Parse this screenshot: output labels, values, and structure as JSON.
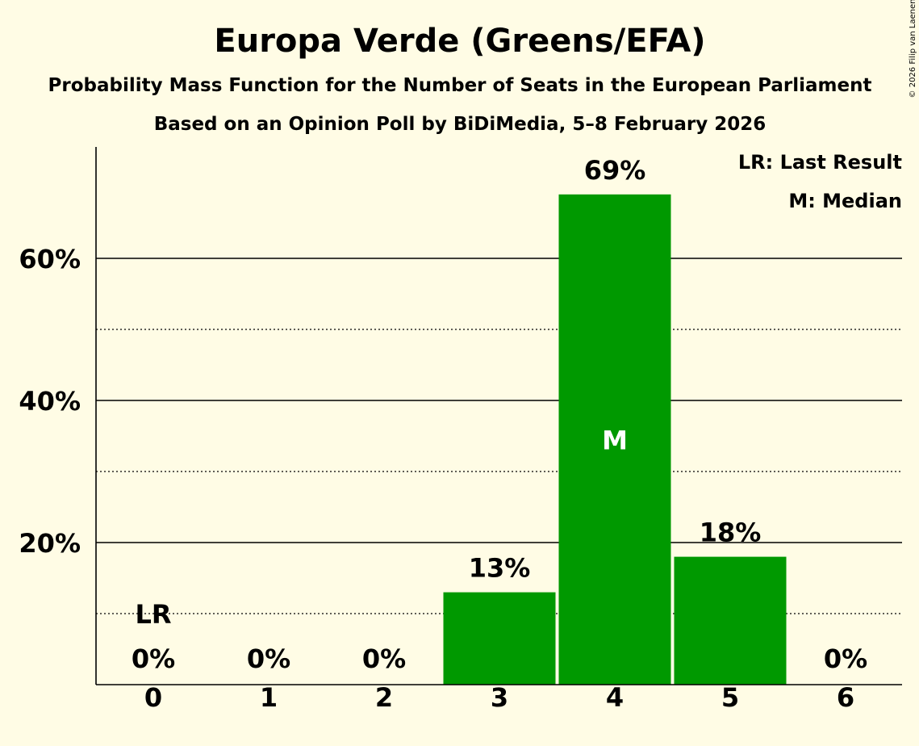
{
  "chart_data": {
    "type": "bar",
    "title": "Europa Verde (Greens/EFA)",
    "subtitle": "Probability Mass Function for the Number of Seats in the European Parliament",
    "subtitle2": "Based on an Opinion Poll by BiDiMedia, 5–8 February 2026",
    "copyright": "© 2026 Filip van Laenen",
    "categories": [
      "0",
      "1",
      "2",
      "3",
      "4",
      "5",
      "6"
    ],
    "values": [
      0,
      0,
      0,
      13,
      69,
      18,
      0
    ],
    "value_labels": [
      "0%",
      "0%",
      "0%",
      "13%",
      "69%",
      "18%",
      "0%"
    ],
    "y_ticks": [
      20,
      40,
      60
    ],
    "y_tick_labels": [
      "20%",
      "40%",
      "60%"
    ],
    "y_minor_ticks": [
      10,
      30,
      50
    ],
    "ylim": [
      0,
      75
    ],
    "bar_color": "#009900",
    "last_result_index": 0,
    "last_result_marker": "LR",
    "median_index": 4,
    "median_marker": "M",
    "legend": [
      "LR: Last Result",
      "M: Median"
    ]
  }
}
